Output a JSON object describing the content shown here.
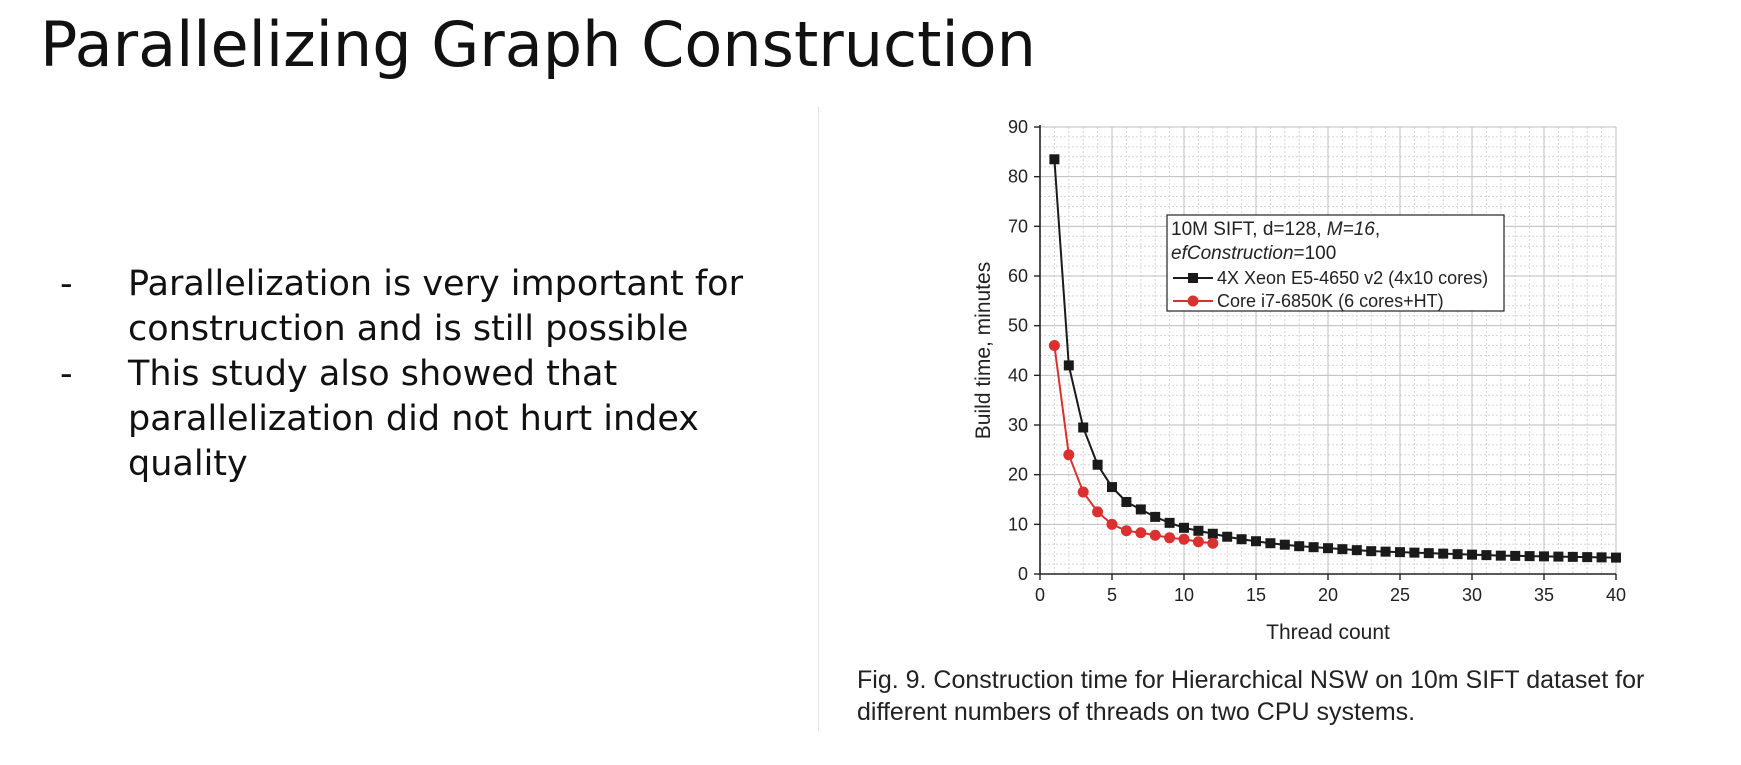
{
  "slide": {
    "title": "Parallelizing Graph Construction",
    "bullet_marker": "-",
    "bullets": [
      "Parallelization is very important for construction and is still possible",
      "This study also showed that parallelization did not hurt index quality"
    ],
    "caption": "Fig. 9. Construction time for Hierarchical NSW on 10m SIFT dataset for different numbers of threads on two CPU systems."
  },
  "chart_data": {
    "type": "line",
    "title": "",
    "xlabel": "Thread count",
    "ylabel": "Build time, minutes",
    "xlim": [
      0,
      40
    ],
    "ylim": [
      0,
      90
    ],
    "x_ticks": [
      0,
      5,
      10,
      15,
      20,
      25,
      30,
      35,
      40
    ],
    "y_ticks": [
      0,
      10,
      20,
      30,
      40,
      50,
      60,
      70,
      80,
      90
    ],
    "grid": true,
    "minor_grid": true,
    "legend_position": "upper-center-right",
    "legend_title_parts": [
      {
        "text": "10M SIFT, d=128, ",
        "italic": false
      },
      {
        "text": "M=16",
        "italic": true
      },
      {
        "text": ",",
        "italic": false
      }
    ],
    "legend_title_line2": [
      {
        "text": "efConstruction",
        "italic": true
      },
      {
        "text": "=100",
        "italic": false
      }
    ],
    "series": [
      {
        "name": "4X Xeon E5-4650 v2 (4x10 cores)",
        "color": "#1a1a1a",
        "marker": "square",
        "x": [
          1,
          2,
          3,
          4,
          5,
          6,
          7,
          8,
          9,
          10,
          11,
          12,
          13,
          14,
          15,
          16,
          17,
          18,
          19,
          20,
          21,
          22,
          23,
          24,
          25,
          26,
          27,
          28,
          29,
          30,
          31,
          32,
          33,
          34,
          35,
          36,
          37,
          38,
          39,
          40
        ],
        "y": [
          83.5,
          42,
          29.5,
          22,
          17.5,
          14.5,
          13,
          11.5,
          10.3,
          9.3,
          8.7,
          8.1,
          7.5,
          7,
          6.6,
          6.2,
          5.9,
          5.6,
          5.4,
          5.2,
          5,
          4.8,
          4.6,
          4.5,
          4.4,
          4.3,
          4.2,
          4.1,
          4,
          3.9,
          3.8,
          3.7,
          3.65,
          3.6,
          3.55,
          3.5,
          3.45,
          3.4,
          3.35,
          3.3
        ]
      },
      {
        "name": "Core i7-6850K (6 cores+HT)",
        "color": "#d93030",
        "marker": "circle",
        "x": [
          1,
          2,
          3,
          4,
          5,
          6,
          7,
          8,
          9,
          10,
          11,
          12
        ],
        "y": [
          46,
          24,
          16.5,
          12.5,
          10,
          8.7,
          8.3,
          7.8,
          7.3,
          7,
          6.5,
          6.2
        ]
      }
    ]
  }
}
